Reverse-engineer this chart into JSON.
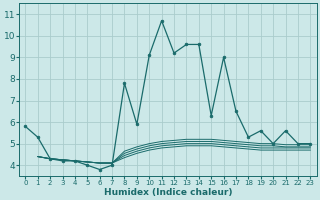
{
  "bg_color": "#cce8e8",
  "grid_color": "#aacccc",
  "line_color": "#1a6b6b",
  "xlabel": "Humidex (Indice chaleur)",
  "xlim": [
    -0.5,
    23.5
  ],
  "ylim": [
    3.5,
    11.5
  ],
  "yticks": [
    4,
    5,
    6,
    7,
    8,
    9,
    10,
    11
  ],
  "xticks": [
    0,
    1,
    2,
    3,
    4,
    5,
    6,
    7,
    8,
    9,
    10,
    11,
    12,
    13,
    14,
    15,
    16,
    17,
    18,
    19,
    20,
    21,
    22,
    23
  ],
  "lines": [
    {
      "x": [
        0,
        1,
        2,
        3,
        4,
        5,
        6,
        7,
        8,
        9,
        10,
        11,
        12,
        13,
        14,
        15,
        16,
        17,
        18,
        19,
        20,
        21,
        22,
        23
      ],
      "y": [
        5.8,
        5.3,
        4.3,
        4.2,
        4.2,
        4.0,
        3.8,
        4.0,
        7.8,
        5.9,
        9.1,
        10.7,
        9.2,
        9.6,
        9.6,
        6.3,
        9.0,
        6.5,
        5.3,
        5.6,
        5.0,
        5.6,
        5.0,
        5.0
      ],
      "markers": true
    },
    {
      "x": [
        1,
        2,
        3,
        4,
        5,
        6,
        7,
        8,
        9,
        10,
        11,
        12,
        13,
        14,
        15,
        16,
        17,
        18,
        19,
        20,
        21,
        22,
        23
      ],
      "y": [
        4.4,
        4.3,
        4.25,
        4.2,
        4.15,
        4.1,
        4.1,
        4.35,
        4.55,
        4.7,
        4.8,
        4.85,
        4.9,
        4.9,
        4.9,
        4.85,
        4.8,
        4.75,
        4.7,
        4.7,
        4.7,
        4.7,
        4.7
      ],
      "markers": false
    },
    {
      "x": [
        1,
        2,
        3,
        4,
        5,
        6,
        7,
        8,
        9,
        10,
        11,
        12,
        13,
        14,
        15,
        16,
        17,
        18,
        19,
        20,
        21,
        22,
        23
      ],
      "y": [
        4.4,
        4.3,
        4.25,
        4.2,
        4.15,
        4.1,
        4.1,
        4.45,
        4.65,
        4.8,
        4.9,
        4.95,
        5.0,
        5.0,
        5.0,
        4.95,
        4.9,
        4.85,
        4.8,
        4.8,
        4.8,
        4.8,
        4.8
      ],
      "markers": false
    },
    {
      "x": [
        1,
        2,
        3,
        4,
        5,
        6,
        7,
        8,
        9,
        10,
        11,
        12,
        13,
        14,
        15,
        16,
        17,
        18,
        19,
        20,
        21,
        22,
        23
      ],
      "y": [
        4.4,
        4.3,
        4.25,
        4.2,
        4.15,
        4.1,
        4.1,
        4.55,
        4.75,
        4.9,
        5.0,
        5.05,
        5.1,
        5.1,
        5.1,
        5.05,
        5.0,
        4.95,
        4.9,
        4.9,
        4.85,
        4.85,
        4.85
      ],
      "markers": false
    },
    {
      "x": [
        1,
        2,
        3,
        4,
        5,
        6,
        7,
        8,
        9,
        10,
        11,
        12,
        13,
        14,
        15,
        16,
        17,
        18,
        19,
        20,
        21,
        22,
        23
      ],
      "y": [
        4.4,
        4.3,
        4.25,
        4.2,
        4.15,
        4.1,
        4.1,
        4.65,
        4.85,
        5.0,
        5.1,
        5.15,
        5.2,
        5.2,
        5.2,
        5.15,
        5.1,
        5.05,
        5.0,
        5.0,
        4.95,
        4.95,
        4.95
      ],
      "markers": false
    }
  ],
  "title_fontsize": 7,
  "xlabel_fontsize": 6.5,
  "xtick_fontsize": 5.0,
  "ytick_fontsize": 6.5
}
